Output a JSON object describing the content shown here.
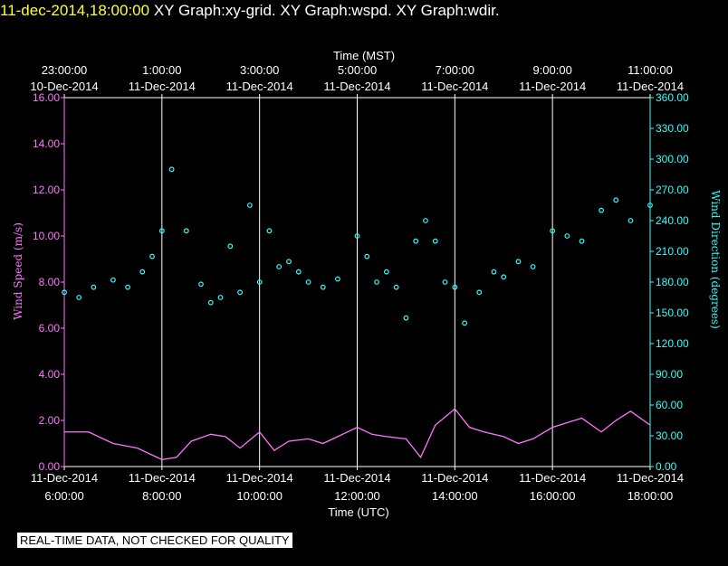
{
  "header": {
    "timestamp": "11-dec-2014,18:00:00",
    "graphs": "XY Graph:xy-grid.  XY Graph:wspd.  XY Graph:wdir."
  },
  "footer": {
    "disclaimer": "REAL-TIME DATA, NOT CHECKED FOR QUALITY"
  },
  "colors": {
    "wind_speed": "#ff77ff",
    "wind_direction": "#33ffff",
    "background": "#000000",
    "title": "#ffff33"
  },
  "chart_data": {
    "type": "line",
    "top_axis": {
      "title": "Time (MST)",
      "ticks": [
        [
          "23:00:00",
          "10-Dec-2014"
        ],
        [
          "1:00:00",
          "11-Dec-2014"
        ],
        [
          "3:00:00",
          "11-Dec-2014"
        ],
        [
          "5:00:00",
          "11-Dec-2014"
        ],
        [
          "7:00:00",
          "11-Dec-2014"
        ],
        [
          "9:00:00",
          "11-Dec-2014"
        ],
        [
          "11:00:00",
          "11-Dec-2014"
        ]
      ]
    },
    "bottom_axis": {
      "title": "Time (UTC)",
      "ticks": [
        [
          "11-Dec-2014",
          "6:00:00"
        ],
        [
          "11-Dec-2014",
          "8:00:00"
        ],
        [
          "11-Dec-2014",
          "10:00:00"
        ],
        [
          "11-Dec-2014",
          "12:00:00"
        ],
        [
          "11-Dec-2014",
          "14:00:00"
        ],
        [
          "11-Dec-2014",
          "16:00:00"
        ],
        [
          "11-Dec-2014",
          "18:00:00"
        ]
      ],
      "xlim_hours_utc": [
        6,
        18
      ]
    },
    "left_axis": {
      "title": "Wind Speed (m/s)",
      "ylim": [
        0,
        16
      ],
      "ticks": [
        "0.00",
        "2.00",
        "4.00",
        "6.00",
        "8.00",
        "10.00",
        "12.00",
        "14.00",
        "16.00"
      ]
    },
    "right_axis": {
      "title": "Wind Direction (degrees)",
      "ylim": [
        0,
        360
      ],
      "ticks": [
        "0.00",
        "30.00",
        "60.00",
        "90.00",
        "120.00",
        "150.00",
        "180.00",
        "210.00",
        "240.00",
        "270.00",
        "300.00",
        "330.00",
        "360.00"
      ]
    },
    "grid": "vertical lines at top/bottom axis ticks",
    "series": [
      {
        "name": "Wind Speed",
        "axis": "left",
        "style": "line",
        "x": [
          6.0,
          6.5,
          7.0,
          7.5,
          8.0,
          8.3,
          8.6,
          9.0,
          9.3,
          9.6,
          10.0,
          10.3,
          10.6,
          11.0,
          11.3,
          11.6,
          12.0,
          12.3,
          12.6,
          13.0,
          13.3,
          13.6,
          14.0,
          14.3,
          14.6,
          15.0,
          15.3,
          15.6,
          16.0,
          16.3,
          16.6,
          17.0,
          17.3,
          17.6,
          18.0
        ],
        "y": [
          1.5,
          1.5,
          1.0,
          0.8,
          0.3,
          0.4,
          1.1,
          1.4,
          1.3,
          0.8,
          1.5,
          0.7,
          1.1,
          1.2,
          1.0,
          1.3,
          1.7,
          1.4,
          1.3,
          1.2,
          0.4,
          1.8,
          2.5,
          1.7,
          1.5,
          1.3,
          1.0,
          1.2,
          1.7,
          1.9,
          2.1,
          1.5,
          2.0,
          2.4,
          1.8
        ]
      },
      {
        "name": "Wind Direction",
        "axis": "right",
        "style": "scatter",
        "x": [
          6.0,
          6.3,
          6.6,
          7.0,
          7.3,
          7.6,
          7.8,
          8.0,
          8.2,
          8.5,
          8.8,
          9.0,
          9.2,
          9.4,
          9.6,
          9.8,
          10.0,
          10.2,
          10.4,
          10.6,
          10.8,
          11.0,
          11.3,
          11.6,
          12.0,
          12.2,
          12.4,
          12.6,
          12.8,
          13.0,
          13.2,
          13.4,
          13.6,
          13.8,
          14.0,
          14.2,
          14.5,
          14.8,
          15.0,
          15.3,
          15.6,
          16.0,
          16.3,
          16.6,
          17.0,
          17.3,
          17.6,
          18.0
        ],
        "y": [
          170,
          165,
          175,
          182,
          175,
          190,
          205,
          230,
          290,
          230,
          178,
          160,
          165,
          215,
          170,
          255,
          180,
          230,
          195,
          200,
          190,
          180,
          175,
          183,
          225,
          205,
          180,
          190,
          175,
          145,
          220,
          240,
          220,
          180,
          175,
          140,
          170,
          190,
          185,
          200,
          195,
          230,
          225,
          220,
          250,
          260,
          240,
          255
        ]
      }
    ]
  }
}
